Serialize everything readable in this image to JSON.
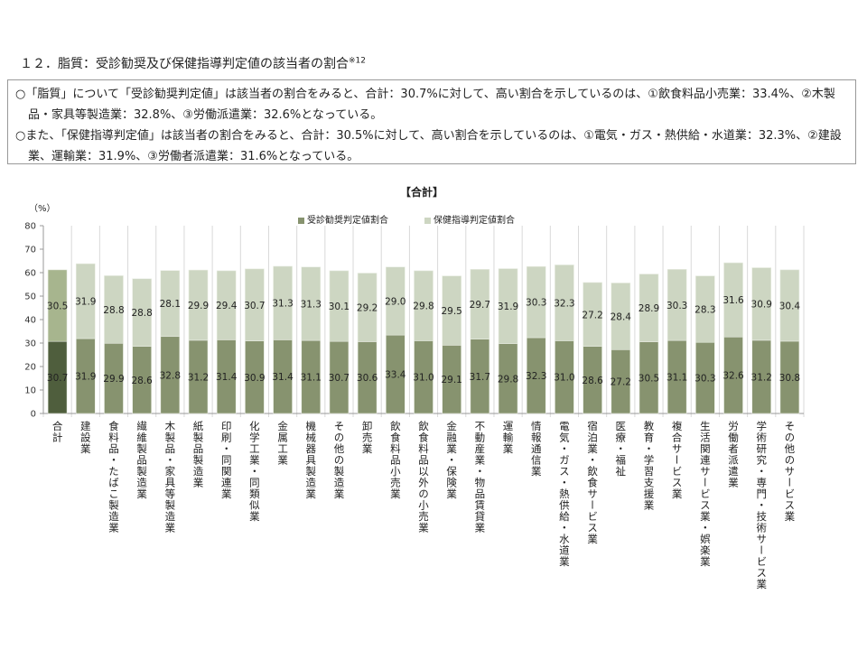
{
  "heading": {
    "title": "１２．脂質：受診勧奨及び保健指導判定値の該当者の割合",
    "note": "※12"
  },
  "summary": [
    "○「脂質」について「受診勧奨判定値」は該当者の割合をみると、合計：30.7%に対して、高い割合を示しているのは、①飲食料品小売業：33.4%、②木製品・家具等製造業：32.8%、③労働派遣業：32.6%となっている。",
    "○また、「保健指導判定値」は該当者の割合をみると、合計：30.5%に対して、高い割合を示しているのは、①電気・ガス・熱供給・水道業：32.3%、②建設業、運輸業：31.9%、③労働者派遣業：31.6%となっている。"
  ],
  "chart_data": {
    "type": "bar",
    "stacked": true,
    "title": "【合計】",
    "ylabel": "（%）",
    "ylim": [
      0,
      80
    ],
    "yticks": [
      0,
      10,
      20,
      30,
      40,
      50,
      60,
      70,
      80
    ],
    "legend": "top",
    "grid": "vertical category separators",
    "categories": [
      "合計",
      "建設業",
      "食料品・たばこ製造業",
      "繊維製品製造業",
      "木製品・家具等製造業",
      "紙製品製造業",
      "印刷・同関連業",
      "化学工業・同類似業",
      "金属工業",
      "機械器具製造業",
      "その他の製造業",
      "卸売業",
      "飲食料品小売業",
      "飲食料品以外の小売業",
      "金融業・保険業",
      "不動産業・物品賃貸業",
      "運輸業",
      "情報通信業",
      "電気・ガス・熱供給・水道業",
      "宿泊業・飲食サービス業",
      "医療・福祉",
      "教育・学習支援業",
      "複合サービス業",
      "生活関連サービス業・娯楽業",
      "労働者派遣業",
      "学術研究・専門・技術サービス業",
      "その他のサービス業"
    ],
    "series": [
      {
        "name": "受診勧奨判定値割合",
        "color": "#87936f",
        "total_color": "#4f5e3d",
        "values": [
          30.7,
          31.9,
          29.9,
          28.6,
          32.8,
          31.2,
          31.4,
          30.9,
          31.4,
          31.1,
          30.7,
          30.6,
          33.4,
          31.0,
          29.1,
          31.7,
          29.8,
          32.3,
          31.0,
          28.6,
          27.2,
          30.5,
          31.1,
          30.3,
          32.6,
          31.2,
          30.8
        ]
      },
      {
        "name": "保健指導判定値割合",
        "color": "#cdd6c2",
        "total_color": "#a7b58e",
        "values": [
          30.5,
          31.9,
          28.8,
          28.8,
          28.1,
          29.9,
          29.4,
          30.7,
          31.3,
          31.3,
          30.1,
          29.2,
          29.0,
          29.8,
          29.5,
          29.7,
          31.9,
          30.3,
          32.3,
          27.2,
          28.4,
          28.9,
          30.3,
          28.3,
          31.6,
          30.9,
          30.4
        ]
      }
    ]
  }
}
